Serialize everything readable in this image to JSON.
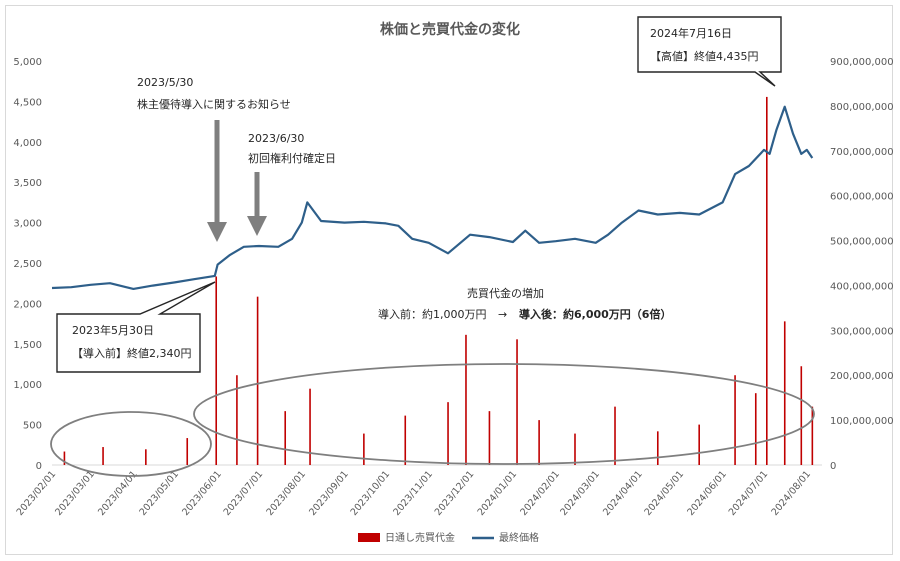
{
  "chart_data": {
    "type": "bar+line",
    "title": "株価と売買代金の変化",
    "left_axis": {
      "ylim": [
        0,
        5000
      ],
      "ticks": [
        "0",
        "500",
        "1,000",
        "1,500",
        "2,000",
        "2,500",
        "3,000",
        "3,500",
        "4,000",
        "4,500",
        "5,000"
      ]
    },
    "right_axis": {
      "ylim": [
        0,
        900000000
      ],
      "ticks": [
        "0",
        "100,000,000",
        "200,000,000",
        "300,000,000",
        "400,000,000",
        "500,000,000",
        "600,000,000",
        "700,000,000",
        "800,000,000",
        "900,000,000"
      ]
    },
    "x_ticks": [
      "2023/02/01",
      "2023/03/01",
      "2023/04/01",
      "2023/05/01",
      "2023/06/01",
      "2023/07/01",
      "2023/08/01",
      "2023/09/01",
      "2023/10/01",
      "2023/11/01",
      "2023/12/01",
      "2024/01/01",
      "2024/02/01",
      "2024/03/01",
      "2024/04/01",
      "2024/05/01",
      "2024/06/01",
      "2024/07/01",
      "2024/08/01"
    ],
    "grid": "off",
    "legend_position": "bottom",
    "series": [
      {
        "name": "日通し売買代金",
        "type": "bar",
        "axis": "right",
        "color": "#c00000"
      },
      {
        "name": "最終価格",
        "type": "line",
        "axis": "left",
        "color": "#2e5f8a"
      }
    ],
    "price_points": [
      [
        "2023-02-01",
        2190
      ],
      [
        "2023-02-15",
        2200
      ],
      [
        "2023-03-01",
        2230
      ],
      [
        "2023-03-15",
        2250
      ],
      [
        "2023-04-01",
        2180
      ],
      [
        "2023-04-15",
        2220
      ],
      [
        "2023-05-01",
        2260
      ],
      [
        "2023-05-15",
        2300
      ],
      [
        "2023-05-30",
        2340
      ],
      [
        "2023-06-01",
        2480
      ],
      [
        "2023-06-10",
        2600
      ],
      [
        "2023-06-20",
        2700
      ],
      [
        "2023-07-01",
        2710
      ],
      [
        "2023-07-15",
        2700
      ],
      [
        "2023-07-25",
        2800
      ],
      [
        "2023-08-01",
        3000
      ],
      [
        "2023-08-05",
        3250
      ],
      [
        "2023-08-15",
        3020
      ],
      [
        "2023-09-01",
        3000
      ],
      [
        "2023-09-15",
        3010
      ],
      [
        "2023-10-01",
        2990
      ],
      [
        "2023-10-10",
        2960
      ],
      [
        "2023-10-20",
        2800
      ],
      [
        "2023-11-01",
        2750
      ],
      [
        "2023-11-15",
        2620
      ],
      [
        "2023-12-01",
        2850
      ],
      [
        "2023-12-15",
        2820
      ],
      [
        "2024-01-01",
        2760
      ],
      [
        "2024-01-10",
        2900
      ],
      [
        "2024-01-20",
        2750
      ],
      [
        "2024-02-01",
        2770
      ],
      [
        "2024-02-15",
        2800
      ],
      [
        "2024-03-01",
        2750
      ],
      [
        "2024-03-10",
        2850
      ],
      [
        "2024-03-20",
        3000
      ],
      [
        "2024-04-01",
        3150
      ],
      [
        "2024-04-15",
        3100
      ],
      [
        "2024-05-01",
        3120
      ],
      [
        "2024-05-15",
        3100
      ],
      [
        "2024-06-01",
        3250
      ],
      [
        "2024-06-10",
        3600
      ],
      [
        "2024-06-20",
        3700
      ],
      [
        "2024-07-01",
        3900
      ],
      [
        "2024-07-05",
        3850
      ],
      [
        "2024-07-10",
        4150
      ],
      [
        "2024-07-16",
        4435
      ],
      [
        "2024-07-22",
        4100
      ],
      [
        "2024-07-28",
        3850
      ],
      [
        "2024-08-01",
        3900
      ],
      [
        "2024-08-05",
        3800
      ]
    ],
    "volume_bars": [
      [
        "2023-02-10",
        30000000
      ],
      [
        "2023-03-10",
        40000000
      ],
      [
        "2023-04-10",
        35000000
      ],
      [
        "2023-05-10",
        60000000
      ],
      [
        "2023-05-31",
        420000000
      ],
      [
        "2023-06-15",
        200000000
      ],
      [
        "2023-06-30",
        375000000
      ],
      [
        "2023-07-20",
        120000000
      ],
      [
        "2023-08-07",
        170000000
      ],
      [
        "2023-09-15",
        70000000
      ],
      [
        "2023-10-15",
        110000000
      ],
      [
        "2023-11-15",
        140000000
      ],
      [
        "2023-11-28",
        290000000
      ],
      [
        "2023-12-15",
        120000000
      ],
      [
        "2024-01-04",
        280000000
      ],
      [
        "2024-01-20",
        100000000
      ],
      [
        "2024-02-15",
        70000000
      ],
      [
        "2024-03-15",
        130000000
      ],
      [
        "2024-04-15",
        75000000
      ],
      [
        "2024-05-15",
        90000000
      ],
      [
        "2024-06-10",
        200000000
      ],
      [
        "2024-06-25",
        160000000
      ],
      [
        "2024-07-03",
        820000000
      ],
      [
        "2024-07-16",
        320000000
      ],
      [
        "2024-07-28",
        220000000
      ],
      [
        "2024-08-05",
        130000000
      ]
    ]
  },
  "annotations": {
    "pre_announce": {
      "date": "2023/5/30",
      "text": "株主優待導入に関するお知らせ"
    },
    "record_date": {
      "date": "2023/6/30",
      "text": "初回権利付確定日"
    },
    "before_intro": {
      "line1": "2023年5月30日",
      "line2": "【導入前】終値2,340円"
    },
    "high": {
      "line1": "2024年7月16日",
      "line2": "【高値】終値4,435円"
    },
    "volume_increase": {
      "title": "売買代金の増加",
      "before": "導入前：約1,000万円",
      "arrow": "→",
      "after": "導入後：約6,000万円（6倍）"
    }
  }
}
